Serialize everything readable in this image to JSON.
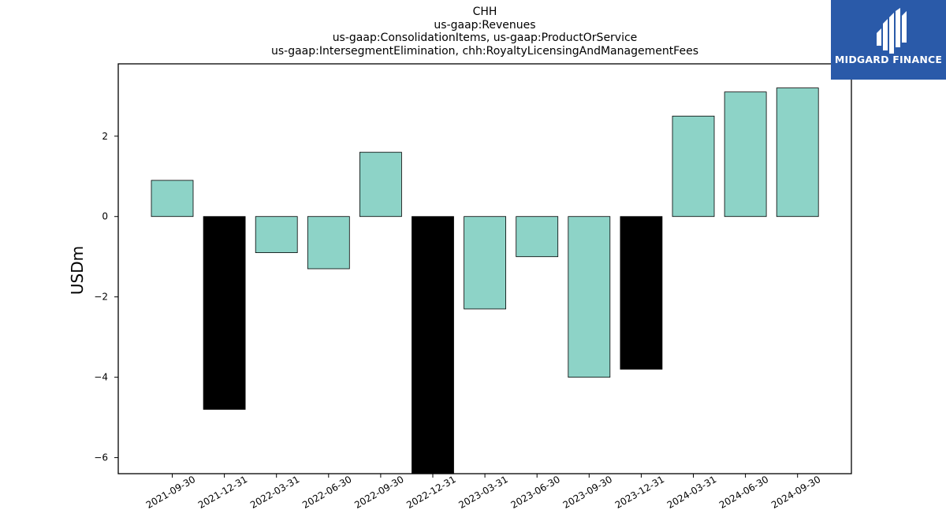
{
  "chart_data": {
    "type": "bar",
    "title_lines": [
      "CHH",
      "us-gaap:Revenues",
      "us-gaap:ConsolidationItems, us-gaap:ProductOrService",
      "us-gaap:IntersegmentElimination, chh:RoyaltyLicensingAndManagementFees"
    ],
    "ylabel": "USDm",
    "xlabel": "",
    "categories": [
      "2021-09-30",
      "2021-12-31",
      "2022-03-31",
      "2022-06-30",
      "2022-09-30",
      "2022-12-31",
      "2023-03-31",
      "2023-06-30",
      "2023-09-30",
      "2023-12-31",
      "2024-03-31",
      "2024-06-30",
      "2024-09-30"
    ],
    "values": [
      0.9,
      -4.8,
      -0.9,
      -1.3,
      1.6,
      -6.4,
      -2.3,
      -1.0,
      -4.0,
      -3.8,
      2.5,
      3.1,
      3.2
    ],
    "bar_colors": [
      "#8dd3c7",
      "#000000",
      "#8dd3c7",
      "#8dd3c7",
      "#8dd3c7",
      "#000000",
      "#8dd3c7",
      "#8dd3c7",
      "#8dd3c7",
      "#000000",
      "#8dd3c7",
      "#8dd3c7",
      "#8dd3c7"
    ],
    "yticks": [
      2,
      0,
      -2,
      -4,
      -6
    ],
    "ytick_labels": [
      "2",
      "0",
      "−2",
      "−4",
      "−6"
    ],
    "ylim": [
      -6.4,
      3.8
    ],
    "grid": false
  },
  "logo": {
    "text": "MIDGARD FINANCE",
    "color": "#2a5aa9"
  }
}
